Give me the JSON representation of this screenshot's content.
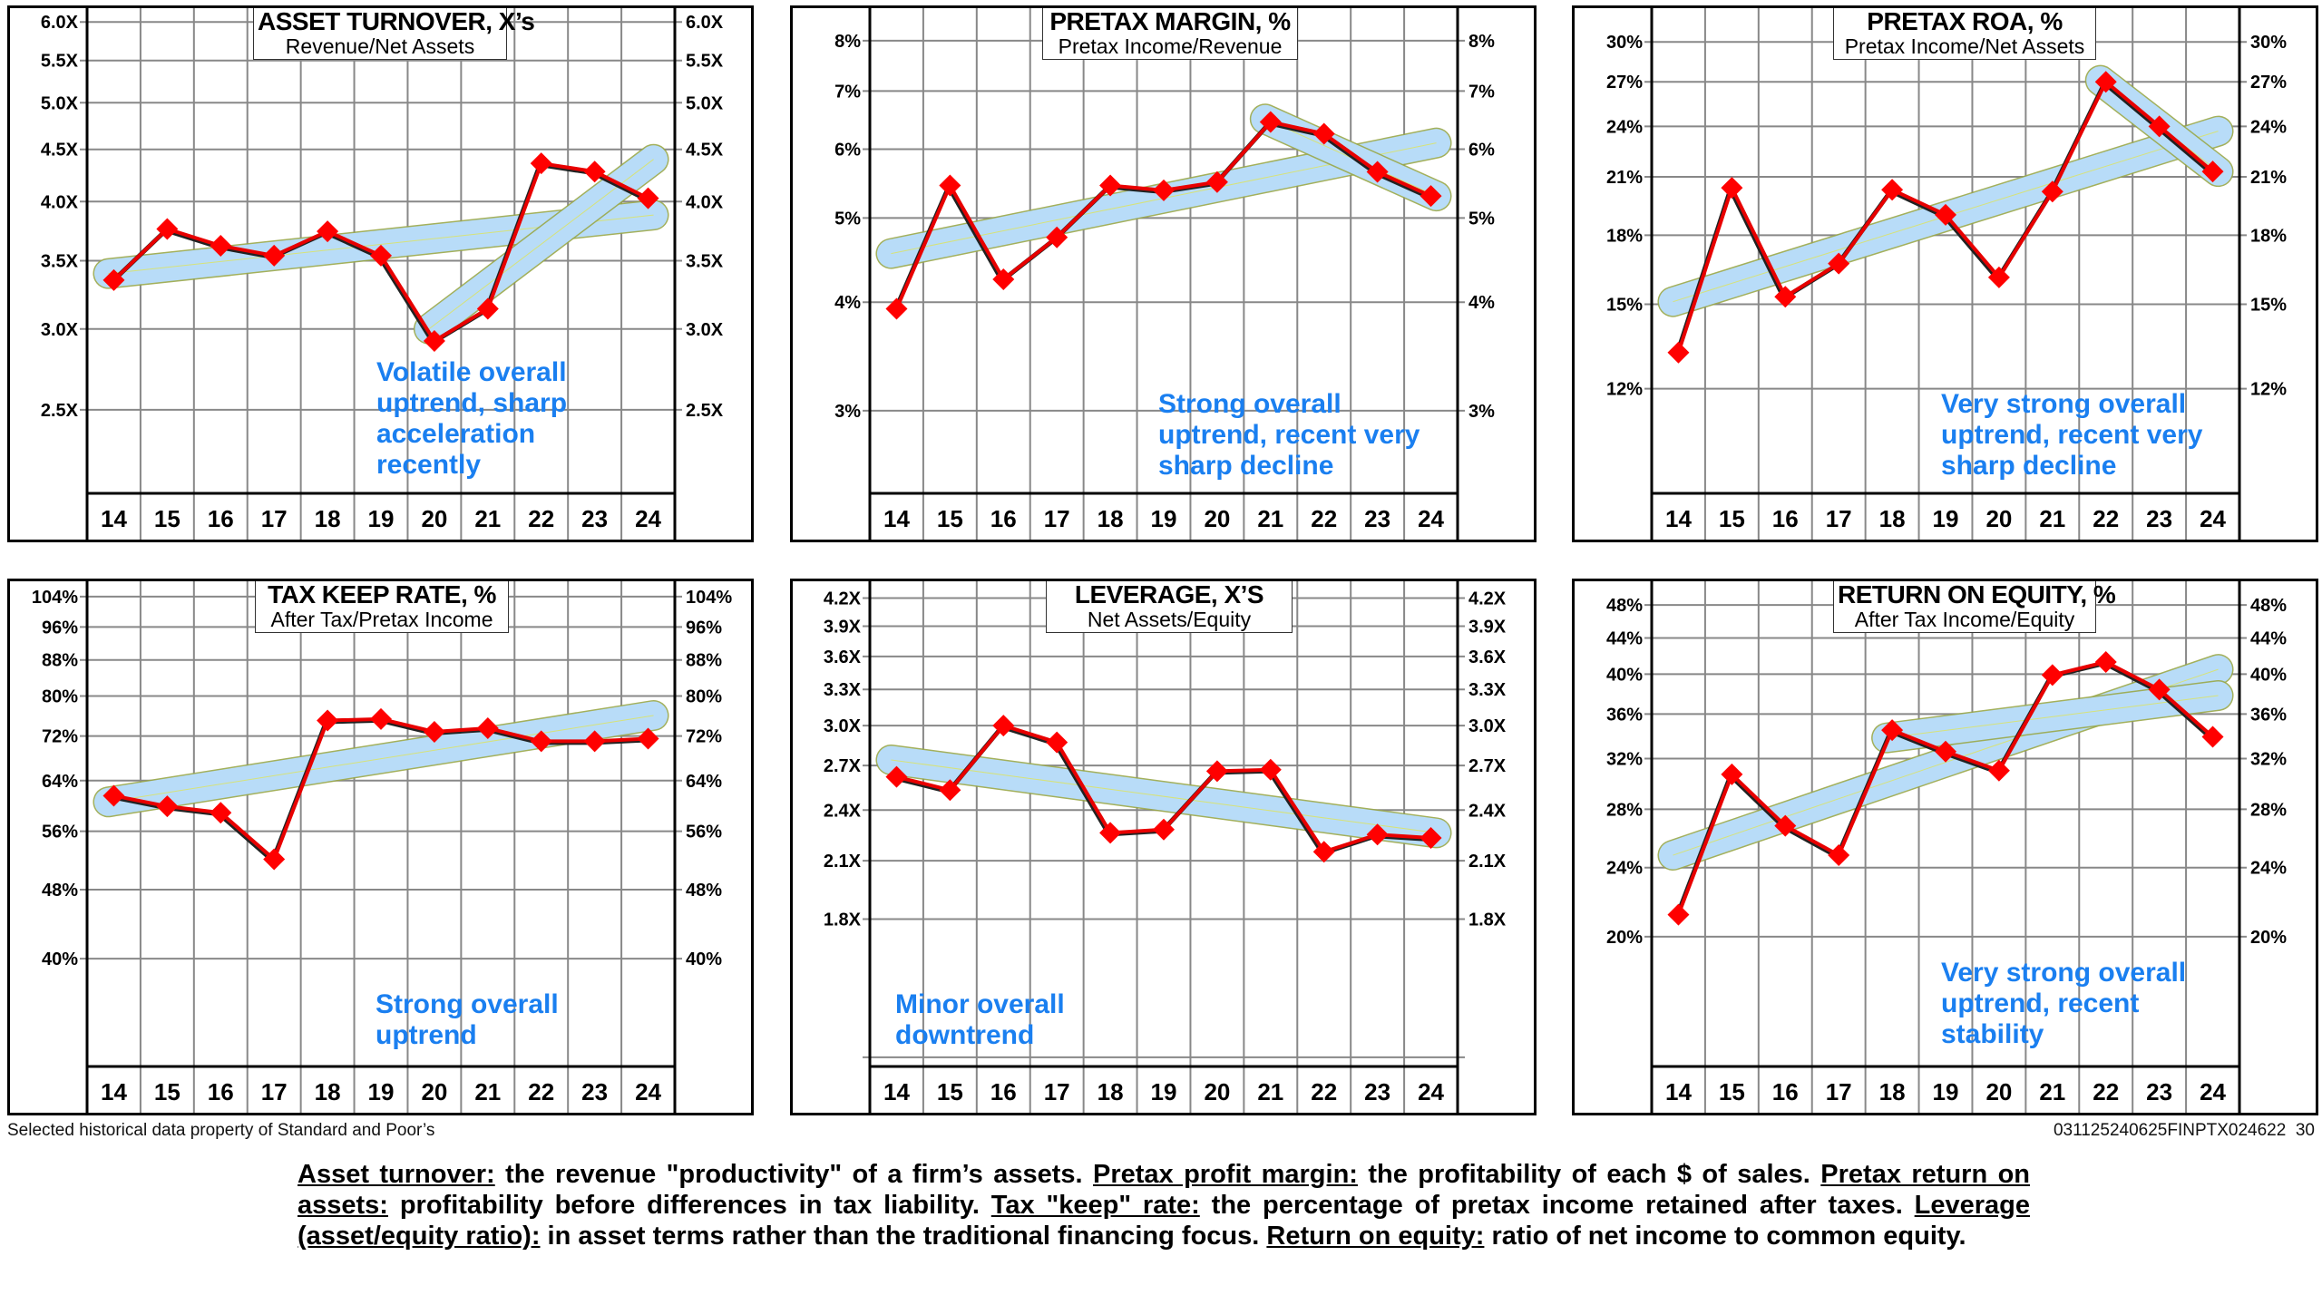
{
  "footer": {
    "source": "Selected historical data property of Standard and Poor’s",
    "code": "031125240625FINPTX024622  30",
    "definitions": [
      {
        "term": "Asset turnover:",
        "text": " the revenue \"productivity\" of a firm’s assets. "
      },
      {
        "term": "Pretax profit margin:",
        "text": " the profitability of each $ of sales. "
      },
      {
        "term": "Pretax return on assets:",
        "text": " profitability before differences in tax liability. "
      },
      {
        "term": "Tax \"keep\" rate:",
        "text": " the percentage of pretax income retained after taxes. "
      },
      {
        "term": "Leverage (asset/equity ratio):",
        "text": " in asset terms rather than the traditional financing focus. "
      },
      {
        "term": "Return on equity:",
        "text": " ratio of net income to common equity."
      }
    ]
  },
  "colors": {
    "line": "#e80000",
    "marker": "#ff0000",
    "band_fill": "#b8dcf8",
    "band_edge": "#9aa84a",
    "grid": "#888888",
    "annotation": "#1a7ff0"
  },
  "chart_data": [
    {
      "type": "line",
      "id": "asset-turnover",
      "title": "ASSET TURNOVER, X’s",
      "subtitle": "Revenue/Net Assets",
      "annotation": "Volatile overall\nuptrend, sharp\nacceleration\nrecently",
      "scale": "log",
      "ylim": [
        2.07,
        6.19
      ],
      "yticks": [
        6.0,
        5.5,
        5.0,
        4.5,
        4.0,
        3.5,
        3.0,
        2.5
      ],
      "ytick_labels": [
        "6.0X",
        "5.5X",
        "5.0X",
        "4.5X",
        "4.0X",
        "3.5X",
        "3.0X",
        "2.5X"
      ],
      "extra_gridlines": [],
      "x": [
        "14",
        "15",
        "16",
        "17",
        "18",
        "19",
        "20",
        "21",
        "22",
        "23",
        "24"
      ],
      "values": [
        3.35,
        3.76,
        3.62,
        3.54,
        3.74,
        3.54,
        2.92,
        3.14,
        4.36,
        4.28,
        4.03
      ],
      "trend_bands": [
        {
          "from": "14",
          "to": "24",
          "start": 3.4,
          "end": 3.88
        },
        {
          "from": "20",
          "to": "24",
          "start": 3.0,
          "end": 4.4
        }
      ],
      "grid": true
    },
    {
      "type": "line",
      "id": "pretax-margin",
      "title": "PRETAX MARGIN, %",
      "subtitle": "Pretax Income/Revenue",
      "annotation": "Strong overall\nuptrend, recent very\nsharp decline",
      "scale": "log",
      "ylim": [
        2.41,
        8.72
      ],
      "yticks": [
        8,
        7,
        6,
        5,
        4,
        3
      ],
      "ytick_labels": [
        "8%",
        "7%",
        "6%",
        "5%",
        "4%",
        "3%"
      ],
      "extra_gridlines": [],
      "x": [
        "14",
        "15",
        "16",
        "17",
        "18",
        "19",
        "20",
        "21",
        "22",
        "23",
        "24"
      ],
      "values": [
        3.93,
        5.45,
        4.25,
        4.75,
        5.45,
        5.38,
        5.5,
        6.45,
        6.25,
        5.65,
        5.3
      ],
      "trend_bands": [
        {
          "from": "14",
          "to": "24",
          "start": 4.55,
          "end": 6.1
        },
        {
          "from": "21",
          "to": "24",
          "start": 6.5,
          "end": 5.3
        }
      ],
      "grid": true
    },
    {
      "type": "line",
      "id": "pretax-roa",
      "title": "PRETAX ROA, %",
      "subtitle": "Pretax Income/Net Assets",
      "annotation": "Very strong overall\nuptrend, recent very\nsharp decline",
      "scale": "log",
      "ylim": [
        9.1,
        32.8
      ],
      "yticks": [
        30,
        27,
        24,
        21,
        18,
        15,
        12
      ],
      "ytick_labels": [
        "30%",
        "27%",
        "24%",
        "21%",
        "18%",
        "15%",
        "12%"
      ],
      "extra_gridlines": [],
      "x": [
        "14",
        "15",
        "16",
        "17",
        "18",
        "19",
        "20",
        "21",
        "22",
        "23",
        "24"
      ],
      "values": [
        13.2,
        20.4,
        15.3,
        16.7,
        20.3,
        19.0,
        16.1,
        20.2,
        27.0,
        24.0,
        21.3
      ],
      "trend_bands": [
        {
          "from": "14",
          "to": "24",
          "start": 15.1,
          "end": 23.7
        },
        {
          "from": "22",
          "to": "24",
          "start": 27.1,
          "end": 21.3
        }
      ],
      "grid": true
    },
    {
      "type": "line",
      "id": "tax-keep-rate",
      "title": "TAX KEEP RATE, %",
      "subtitle": "After Tax/Pretax Income",
      "annotation": "Strong overall\nuptrend",
      "scale": "log",
      "ylim": [
        30.1,
        108.3
      ],
      "yticks": [
        104,
        96,
        88,
        80,
        72,
        64,
        56,
        48,
        40
      ],
      "ytick_labels": [
        "104%",
        "96%",
        "88%",
        "80%",
        "72%",
        "64%",
        "56%",
        "48%",
        "40%"
      ],
      "extra_gridlines": [],
      "x": [
        "14",
        "15",
        "16",
        "17",
        "18",
        "19",
        "20",
        "21",
        "22",
        "23",
        "24"
      ],
      "values": [
        61.5,
        59.8,
        58.8,
        52.0,
        75.0,
        75.3,
        72.8,
        73.5,
        71.0,
        71.0,
        71.5
      ],
      "trend_bands": [
        {
          "from": "14",
          "to": "24",
          "start": 60.5,
          "end": 76.0
        }
      ],
      "grid": true
    },
    {
      "type": "line",
      "id": "leverage",
      "title": "LEVERAGE, X’S",
      "subtitle": "Net Assets/Equity",
      "annotation": "Minor overall\ndowntrend",
      "scale": "log",
      "ylim": [
        1.22,
        4.39
      ],
      "yticks": [
        4.2,
        3.9,
        3.6,
        3.3,
        3.0,
        2.7,
        2.4,
        2.1,
        1.8
      ],
      "ytick_labels": [
        "4.2X",
        "3.9X",
        "3.6X",
        "3.3X",
        "3.0X",
        "2.7X",
        "2.4X",
        "2.1X",
        "1.8X"
      ],
      "extra_gridlines": [
        1.25
      ],
      "x": [
        "14",
        "15",
        "16",
        "17",
        "18",
        "19",
        "20",
        "21",
        "22",
        "23",
        "24"
      ],
      "values": [
        2.62,
        2.53,
        3.0,
        2.87,
        2.26,
        2.28,
        2.66,
        2.67,
        2.15,
        2.25,
        2.23
      ],
      "trend_bands": [
        {
          "from": "14",
          "to": "24",
          "start": 2.74,
          "end": 2.26
        }
      ],
      "grid": true
    },
    {
      "type": "line",
      "id": "return-on-equity",
      "title": "RETURN ON EQUITY, %",
      "subtitle": "After Tax Income/Equity",
      "annotation": "Very strong overall\nuptrend, recent\nstability",
      "scale": "log",
      "ylim": [
        14.2,
        51.1
      ],
      "yticks": [
        48,
        44,
        40,
        36,
        32,
        28,
        24,
        20
      ],
      "ytick_labels": [
        "48%",
        "44%",
        "40%",
        "36%",
        "32%",
        "28%",
        "24%",
        "20%"
      ],
      "extra_gridlines": [],
      "x": [
        "14",
        "15",
        "16",
        "17",
        "18",
        "19",
        "20",
        "21",
        "22",
        "23",
        "24"
      ],
      "values": [
        21.2,
        30.7,
        26.8,
        24.8,
        34.5,
        32.6,
        31.0,
        39.9,
        41.3,
        38.4,
        33.9
      ],
      "trend_bands": [
        {
          "from": "14",
          "to": "24",
          "start": 24.8,
          "end": 40.5
        },
        {
          "from": "18",
          "to": "24",
          "start": 33.8,
          "end": 37.8
        }
      ],
      "grid": true
    }
  ]
}
